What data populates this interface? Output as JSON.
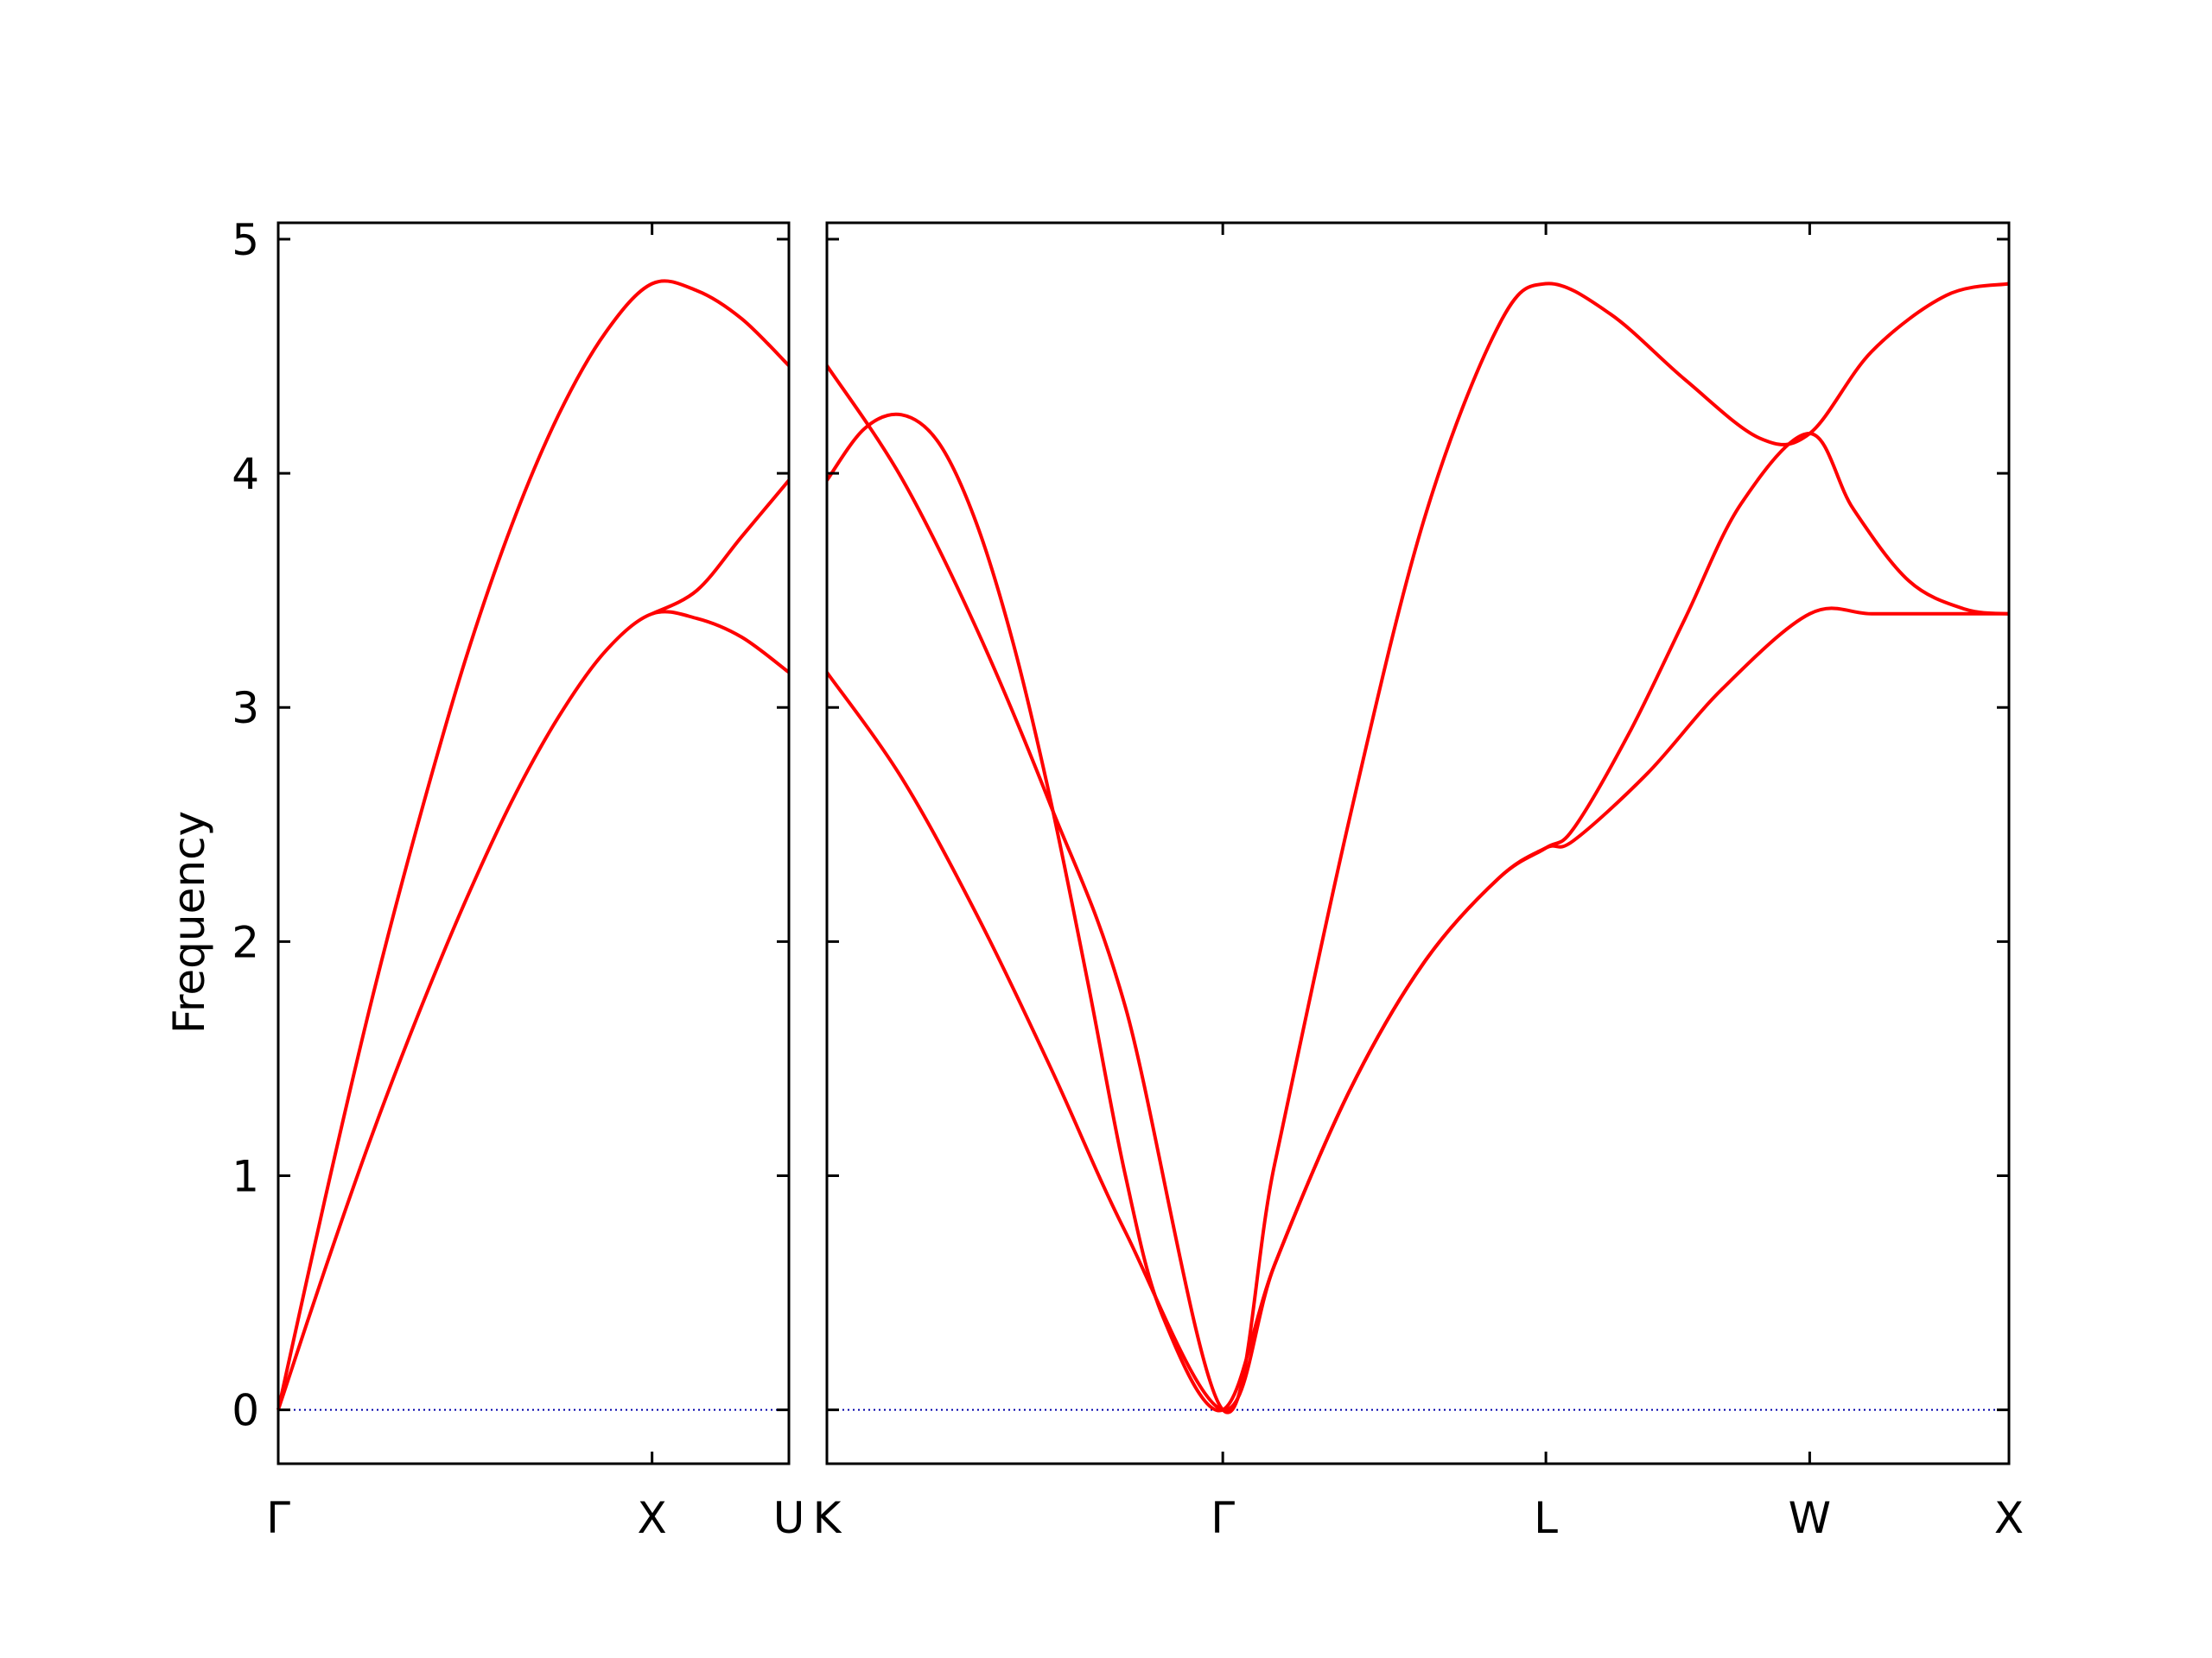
{
  "chart_data": {
    "type": "line",
    "ylabel": "Frequency",
    "ylim": [
      -0.23,
      5.07
    ],
    "yticks": [
      0,
      1,
      2,
      3,
      4,
      5
    ],
    "line_color": "#ff0000",
    "zero_line_color": "#0000aa",
    "panels": [
      {
        "xlim": [
          0,
          1.366
        ],
        "xticks": [
          {
            "x": 0,
            "label": "Γ"
          },
          {
            "x": 1.0,
            "label": "X"
          },
          {
            "x": 1.366,
            "label": "U"
          }
        ],
        "series": [
          {
            "x": [
              0,
              0.125,
              0.25,
              0.375,
              0.5,
              0.625,
              0.75,
              0.875,
              1.0,
              1.12,
              1.24,
              1.366
            ],
            "values": [
              0,
              0.9,
              1.75,
              2.51,
              3.2,
              3.78,
              4.25,
              4.6,
              4.81,
              4.78,
              4.66,
              4.46
            ]
          },
          {
            "x": [
              0,
              0.125,
              0.25,
              0.375,
              0.5,
              0.625,
              0.75,
              0.875,
              1.0,
              1.12,
              1.24,
              1.366
            ],
            "values": [
              0,
              0.6,
              1.17,
              1.69,
              2.17,
              2.6,
              2.96,
              3.24,
              3.4,
              3.38,
              3.3,
              3.15
            ]
          },
          {
            "x": [
              1.0,
              1.12,
              1.24,
              1.366
            ],
            "values": [
              3.4,
              3.5,
              3.73,
              3.97
            ]
          }
        ]
      },
      {
        "xlim": [
          0,
          3.168
        ],
        "xticks": [
          {
            "x": 0,
            "label": "K"
          },
          {
            "x": 1.061,
            "label": "Γ"
          },
          {
            "x": 1.927,
            "label": "L"
          },
          {
            "x": 2.634,
            "label": "W"
          },
          {
            "x": 3.168,
            "label": "X"
          }
        ],
        "series": [
          {
            "x": [
              0,
              0.2,
              0.4,
              0.6,
              0.8,
              1.061,
              1.2,
              1.4,
              1.6,
              1.8,
              1.927,
              2.1,
              2.3,
              2.5,
              2.634,
              2.8,
              3.0,
              3.168
            ],
            "values": [
              4.46,
              3.98,
              3.34,
              2.58,
              1.72,
              0,
              1.05,
              2.52,
              3.8,
              4.63,
              4.81,
              4.68,
              4.4,
              4.15,
              4.17,
              4.52,
              4.76,
              4.81
            ]
          },
          {
            "x": [
              0,
              0.1,
              0.2,
              0.3,
              0.4,
              0.5,
              0.6,
              0.7,
              0.8,
              0.9,
              1.061,
              1.2,
              1.4,
              1.6,
              1.8,
              1.927,
              2.0,
              2.15,
              2.3,
              2.45,
              2.634,
              2.75,
              2.9,
              3.05,
              3.168
            ],
            "values": [
              3.97,
              4.19,
              4.25,
              4.13,
              3.79,
              3.27,
              2.6,
              1.82,
              1.0,
              0.4,
              0,
              0.62,
              1.36,
              1.91,
              2.27,
              2.4,
              2.48,
              2.89,
              3.38,
              3.87,
              4.17,
              3.85,
              3.54,
              3.42,
              3.4
            ]
          },
          {
            "x": [
              0,
              0.2,
              0.4,
              0.6,
              0.8,
              1.061,
              1.2,
              1.4,
              1.6,
              1.8,
              1.927,
              2.0,
              2.2,
              2.4,
              2.634,
              2.8,
              3.0,
              3.168
            ],
            "values": [
              3.15,
              2.7,
              2.12,
              1.46,
              0.76,
              0,
              0.62,
              1.36,
              1.91,
              2.27,
              2.4,
              2.43,
              2.72,
              3.08,
              3.4,
              3.4,
              3.4,
              3.4
            ]
          }
        ]
      }
    ]
  }
}
